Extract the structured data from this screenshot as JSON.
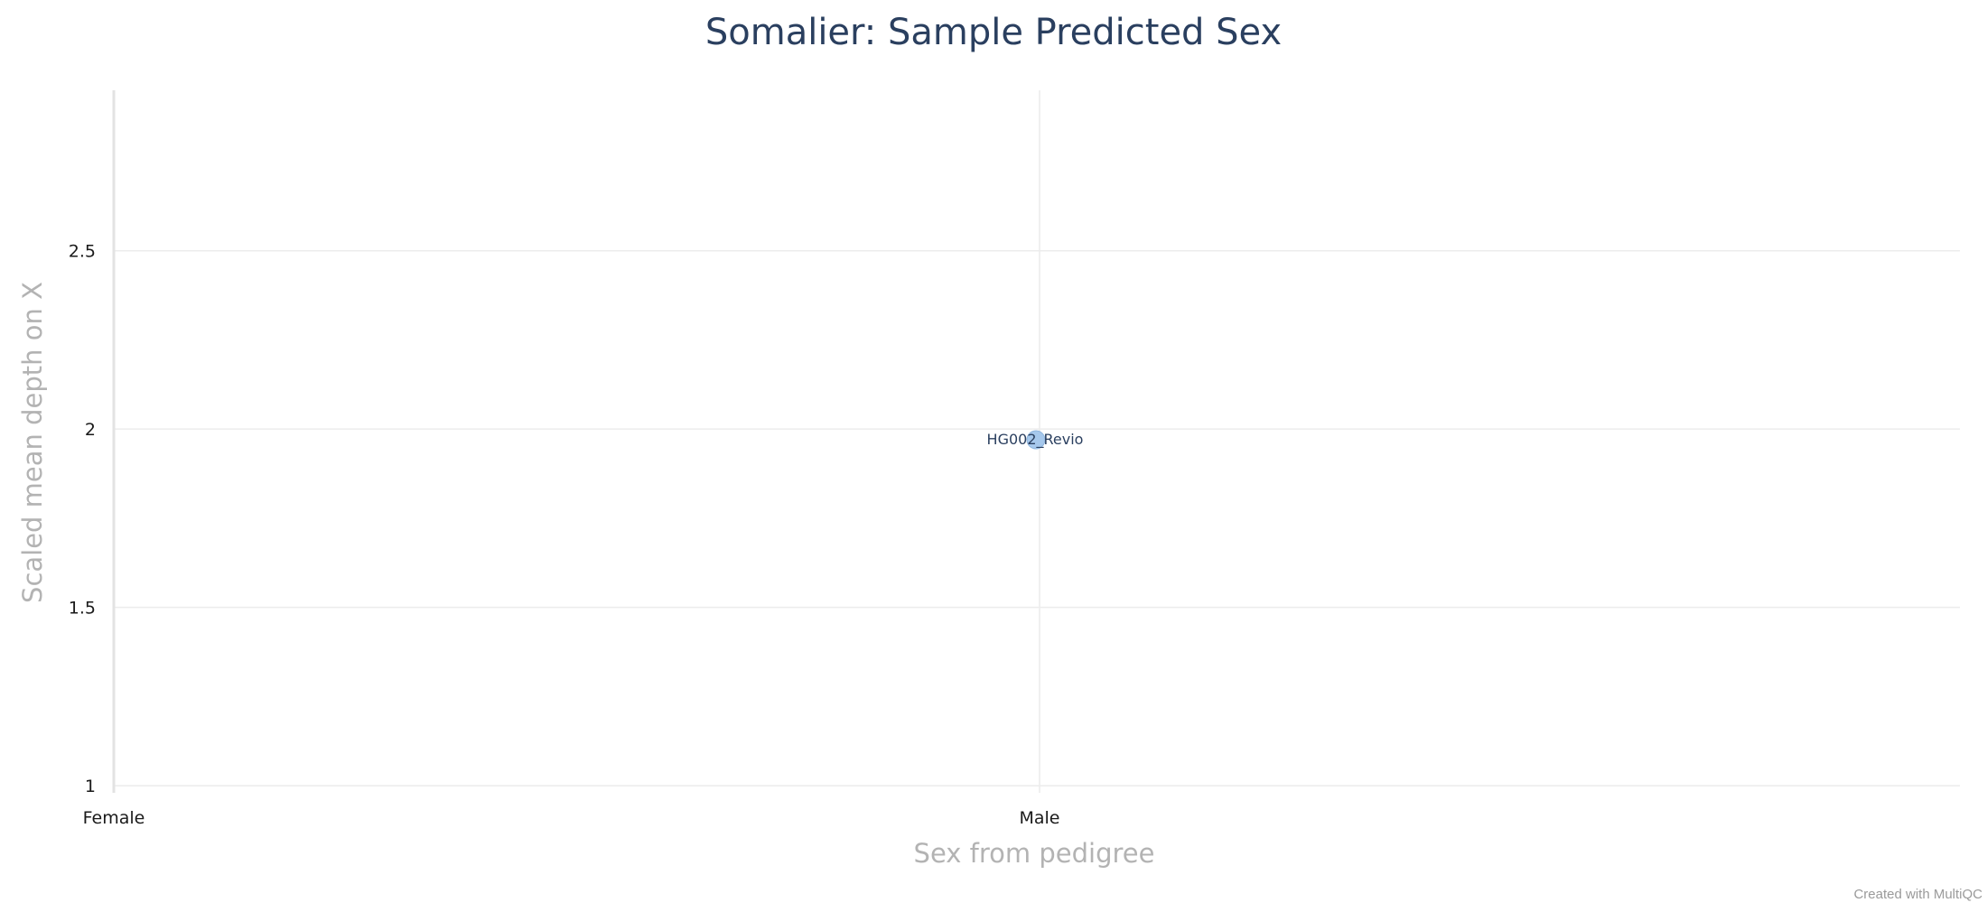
{
  "chart_data": {
    "type": "scatter",
    "title": "Somalier: Sample Predicted Sex",
    "xlabel": "Sex from pedigree",
    "ylabel": "Scaled mean depth on X",
    "x_categories": [
      "Female",
      "Male"
    ],
    "ylim": [
      0.98,
      2.95
    ],
    "y_ticks": [
      1,
      1.5,
      2,
      2.5
    ],
    "grid": true,
    "points": [
      {
        "x": "Male",
        "y": 1.97,
        "label": "HG002_Revio",
        "color": "#a6c8ec"
      }
    ]
  },
  "footer": {
    "credit": "Created with MultiQC"
  }
}
